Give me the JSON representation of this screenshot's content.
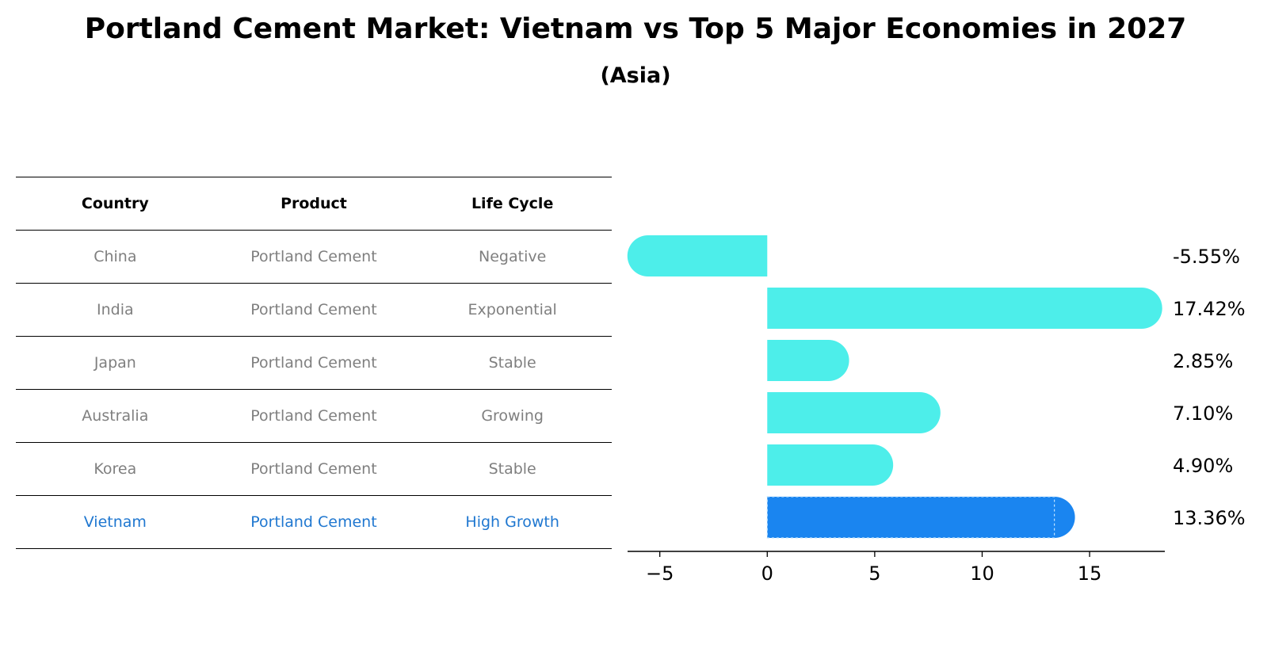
{
  "title": "Portland Cement Market: Vietnam vs Top 5 Major Economies in 2027",
  "subtitle": "(Asia)",
  "table": {
    "headers": [
      "Country",
      "Product",
      "Life Cycle"
    ],
    "rows": [
      {
        "country": "China",
        "product": "Portland Cement",
        "life_cycle": "Negative"
      },
      {
        "country": "India",
        "product": "Portland Cement",
        "life_cycle": "Exponential"
      },
      {
        "country": "Japan",
        "product": "Portland Cement",
        "life_cycle": "Stable"
      },
      {
        "country": "Australia",
        "product": "Portland Cement",
        "life_cycle": "Growing"
      },
      {
        "country": "Korea",
        "product": "Portland Cement",
        "life_cycle": "Stable"
      },
      {
        "country": "Vietnam",
        "product": "Portland Cement",
        "life_cycle": "High Growth"
      }
    ],
    "highlight_row": 5
  },
  "colors": {
    "bar": "#4deeea",
    "highlight_bar": "#1a85f0",
    "highlight_text": "#1f77d0",
    "muted_text": "#7f7f7f"
  },
  "chart_data": {
    "type": "bar",
    "orientation": "horizontal",
    "categories": [
      "China",
      "India",
      "Japan",
      "Australia",
      "Korea",
      "Vietnam"
    ],
    "values": [
      -5.55,
      17.42,
      2.85,
      7.1,
      4.9,
      13.36
    ],
    "value_labels": [
      "-5.55%",
      "17.42%",
      "2.85%",
      "7.10%",
      "4.90%",
      "13.36%"
    ],
    "highlight": "Vietnam",
    "xlim": [
      -6.5,
      18.5
    ],
    "xticks": [
      -5,
      0,
      5,
      10,
      15
    ],
    "xtick_labels": [
      "−5",
      "0",
      "5",
      "10",
      "15"
    ],
    "xlabel": "",
    "ylabel": "",
    "grid": false
  }
}
